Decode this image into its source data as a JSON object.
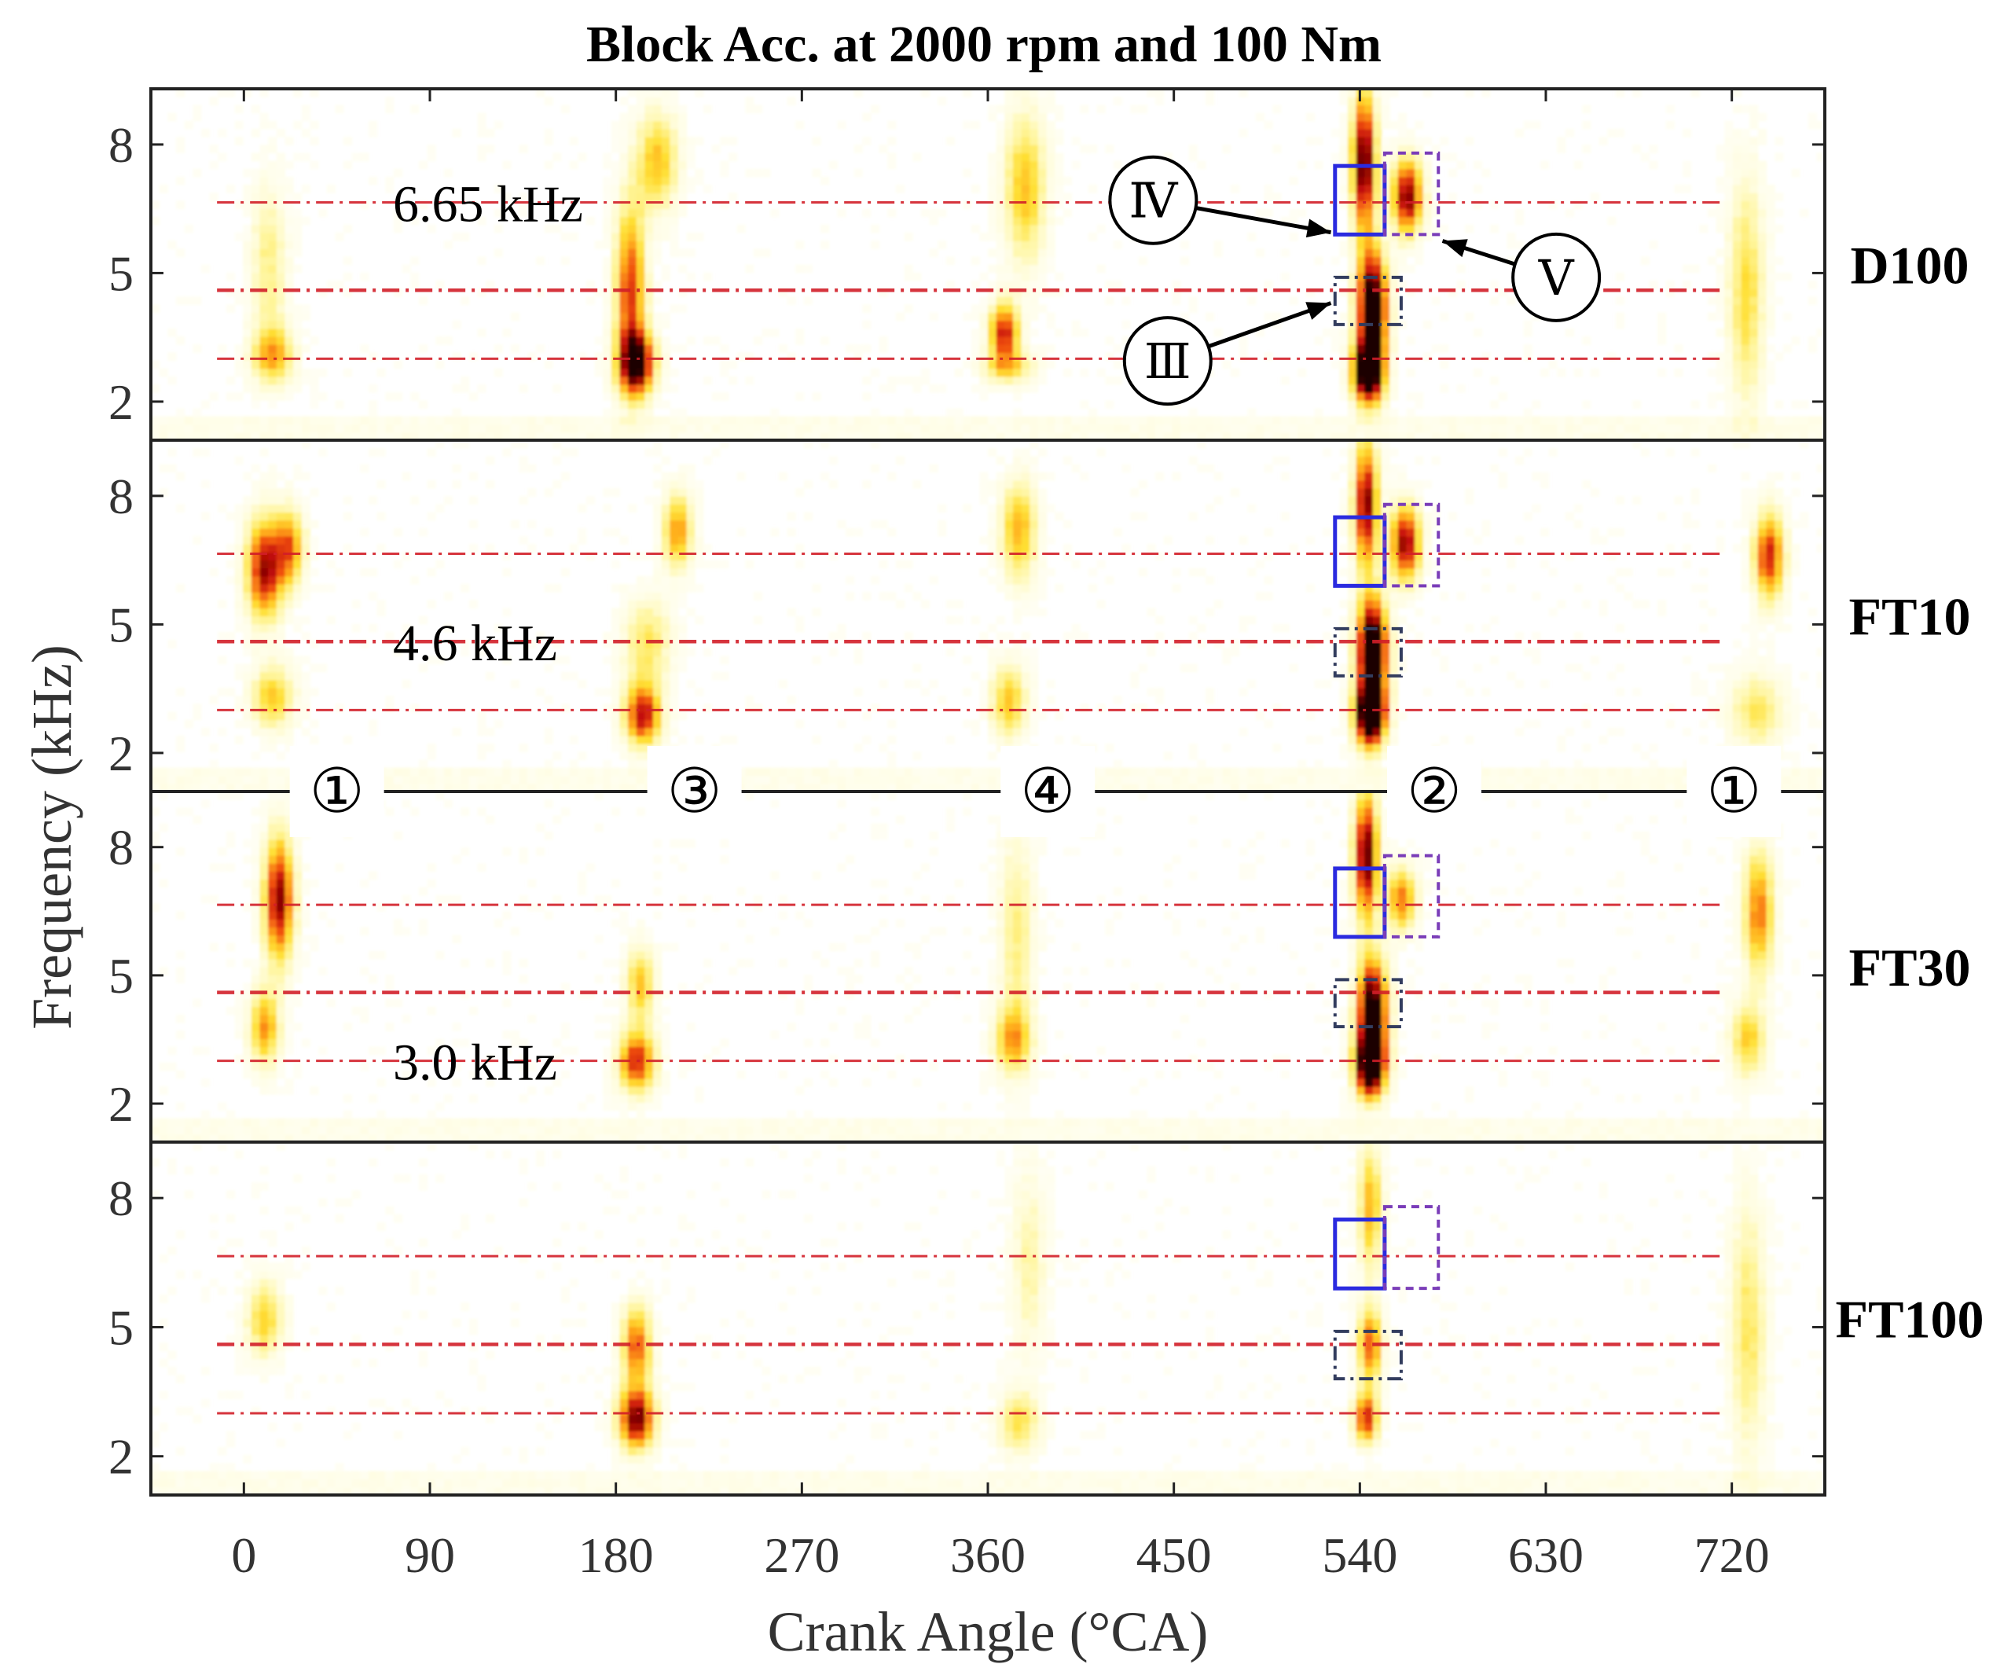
{
  "chart_data": {
    "type": "heatmap",
    "title": "Block Acc. at 2000 rpm and 100 Nm",
    "xlabel": "Crank Angle (°CA)",
    "ylabel": "Frequency (kHz)",
    "xlim": [
      -45,
      765
    ],
    "ylim": [
      1.1,
      9.3
    ],
    "x_ticks": [
      0,
      90,
      180,
      270,
      360,
      450,
      540,
      630,
      720
    ],
    "y_ticks": [
      2,
      5,
      8
    ],
    "colormap": [
      "#ffffff",
      "#fffde0",
      "#fff59a",
      "#ffdf33",
      "#ffa81a",
      "#f05010",
      "#c41008",
      "#7a0000",
      "#1a0000"
    ],
    "reference_lines": [
      {
        "freq": 6.65,
        "label": "6.65 kHz"
      },
      {
        "freq": 4.6,
        "label": "4.6 kHz"
      },
      {
        "freq": 3.0,
        "label": "3.0 kHz"
      }
    ],
    "ref_line_color": "#d21e28",
    "cylinder_markers": [
      {
        "label": "①",
        "x": 45
      },
      {
        "label": "③",
        "x": 218
      },
      {
        "label": "④",
        "x": 389
      },
      {
        "label": "②",
        "x": 576
      },
      {
        "label": "①",
        "x": 721
      }
    ],
    "region_boxes": [
      {
        "name": "III",
        "x": [
          528,
          560
        ],
        "y": [
          3.8,
          4.9
        ],
        "style": "dashdot",
        "color": "#333d5e"
      },
      {
        "name": "IV",
        "x": [
          528,
          552
        ],
        "y": [
          5.9,
          7.5
        ],
        "style": "solid",
        "color": "#2b2bdf"
      },
      {
        "name": "V",
        "x": [
          552,
          578
        ],
        "y": [
          5.9,
          7.8
        ],
        "style": "dotted",
        "color": "#7a3db8"
      }
    ],
    "callouts": [
      {
        "label": "Ⅳ",
        "target": "IV",
        "from": [
          440,
          6.7
        ],
        "to": [
          526,
          5.95
        ]
      },
      {
        "label": "Ⅲ",
        "target": "III",
        "from": [
          447,
          2.95
        ],
        "to": [
          526,
          4.3
        ]
      },
      {
        "label": "Ⅴ",
        "target": "V",
        "from": [
          635,
          4.9
        ],
        "to": [
          580,
          5.75
        ]
      }
    ],
    "panels": [
      {
        "name": "D100",
        "sources": [
          {
            "x": 14,
            "f": 3.1,
            "sx": 7,
            "sf": 0.45,
            "a": 0.45
          },
          {
            "x": 12,
            "f": 5.2,
            "sx": 6,
            "sf": 1.3,
            "a": 0.25
          },
          {
            "x": 190,
            "f": 2.9,
            "sx": 6,
            "sf": 0.5,
            "a": 0.95
          },
          {
            "x": 187,
            "f": 4.6,
            "sx": 5,
            "sf": 1.4,
            "a": 0.65
          },
          {
            "x": 200,
            "f": 7.6,
            "sx": 7,
            "sf": 0.8,
            "a": 0.42
          },
          {
            "x": 368,
            "f": 3.6,
            "sx": 5,
            "sf": 0.5,
            "a": 0.72
          },
          {
            "x": 378,
            "f": 7.0,
            "sx": 7,
            "sf": 1.2,
            "a": 0.42
          },
          {
            "x": 370,
            "f": 2.8,
            "sx": 9,
            "sf": 0.25,
            "a": 0.3
          },
          {
            "x": 544,
            "f": 2.7,
            "sx": 5,
            "sf": 0.5,
            "a": 1.2
          },
          {
            "x": 546,
            "f": 4.2,
            "sx": 5,
            "sf": 0.9,
            "a": 1.15
          },
          {
            "x": 542,
            "f": 7.6,
            "sx": 4,
            "sf": 1.1,
            "a": 0.95
          },
          {
            "x": 563,
            "f": 6.8,
            "sx": 5,
            "sf": 0.6,
            "a": 0.85
          },
          {
            "x": 727,
            "f": 4.6,
            "sx": 6,
            "sf": 1.8,
            "a": 0.35
          }
        ]
      },
      {
        "name": "FT10",
        "sources": [
          {
            "x": 10,
            "f": 6.3,
            "sx": 6,
            "sf": 0.8,
            "a": 0.78
          },
          {
            "x": 22,
            "f": 6.8,
            "sx": 5,
            "sf": 0.6,
            "a": 0.55
          },
          {
            "x": 14,
            "f": 3.3,
            "sx": 7,
            "sf": 0.5,
            "a": 0.4
          },
          {
            "x": 193,
            "f": 2.9,
            "sx": 6,
            "sf": 0.5,
            "a": 0.75
          },
          {
            "x": 195,
            "f": 4.6,
            "sx": 8,
            "sf": 0.7,
            "a": 0.3
          },
          {
            "x": 210,
            "f": 7.2,
            "sx": 5,
            "sf": 0.6,
            "a": 0.5
          },
          {
            "x": 370,
            "f": 3.2,
            "sx": 6,
            "sf": 0.6,
            "a": 0.4
          },
          {
            "x": 375,
            "f": 7.2,
            "sx": 6,
            "sf": 0.8,
            "a": 0.45
          },
          {
            "x": 545,
            "f": 2.9,
            "sx": 5,
            "sf": 0.5,
            "a": 1.3
          },
          {
            "x": 546,
            "f": 4.4,
            "sx": 5,
            "sf": 0.8,
            "a": 1.25
          },
          {
            "x": 543,
            "f": 7.8,
            "sx": 4,
            "sf": 1.0,
            "a": 0.85
          },
          {
            "x": 562,
            "f": 6.9,
            "sx": 5,
            "sf": 0.6,
            "a": 0.82
          },
          {
            "x": 738,
            "f": 6.6,
            "sx": 5,
            "sf": 0.7,
            "a": 0.7
          },
          {
            "x": 732,
            "f": 3.0,
            "sx": 9,
            "sf": 0.6,
            "a": 0.3
          }
        ]
      },
      {
        "name": "FT30",
        "sources": [
          {
            "x": 17,
            "f": 6.8,
            "sx": 5,
            "sf": 1.0,
            "a": 0.82
          },
          {
            "x": 10,
            "f": 3.8,
            "sx": 5,
            "sf": 0.6,
            "a": 0.5
          },
          {
            "x": 190,
            "f": 3.0,
            "sx": 6,
            "sf": 0.5,
            "a": 0.7
          },
          {
            "x": 192,
            "f": 4.8,
            "sx": 5,
            "sf": 0.6,
            "a": 0.4
          },
          {
            "x": 372,
            "f": 3.5,
            "sx": 6,
            "sf": 0.5,
            "a": 0.45
          },
          {
            "x": 374,
            "f": 5.8,
            "sx": 6,
            "sf": 1.8,
            "a": 0.25
          },
          {
            "x": 545,
            "f": 2.9,
            "sx": 5,
            "sf": 0.5,
            "a": 1.2
          },
          {
            "x": 546,
            "f": 4.2,
            "sx": 5,
            "sf": 0.8,
            "a": 1.1
          },
          {
            "x": 543,
            "f": 7.8,
            "sx": 4,
            "sf": 1.0,
            "a": 0.92
          },
          {
            "x": 560,
            "f": 6.8,
            "sx": 5,
            "sf": 0.5,
            "a": 0.55
          },
          {
            "x": 733,
            "f": 6.5,
            "sx": 5,
            "sf": 1.0,
            "a": 0.55
          },
          {
            "x": 728,
            "f": 3.5,
            "sx": 6,
            "sf": 0.6,
            "a": 0.38
          }
        ]
      },
      {
        "name": "FT100",
        "sources": [
          {
            "x": 10,
            "f": 5.2,
            "sx": 6,
            "sf": 0.6,
            "a": 0.38
          },
          {
            "x": 190,
            "f": 2.9,
            "sx": 6,
            "sf": 0.5,
            "a": 0.88
          },
          {
            "x": 190,
            "f": 4.6,
            "sx": 5,
            "sf": 0.6,
            "a": 0.6
          },
          {
            "x": 375,
            "f": 2.8,
            "sx": 7,
            "sf": 0.5,
            "a": 0.32
          },
          {
            "x": 380,
            "f": 6.5,
            "sx": 6,
            "sf": 1.5,
            "a": 0.2
          },
          {
            "x": 543,
            "f": 2.9,
            "sx": 4,
            "sf": 0.4,
            "a": 0.7
          },
          {
            "x": 545,
            "f": 4.6,
            "sx": 4,
            "sf": 0.6,
            "a": 0.6
          },
          {
            "x": 545,
            "f": 7.8,
            "sx": 4,
            "sf": 1.0,
            "a": 0.45
          },
          {
            "x": 728,
            "f": 5.0,
            "sx": 6,
            "sf": 2.0,
            "a": 0.3
          }
        ]
      }
    ]
  }
}
